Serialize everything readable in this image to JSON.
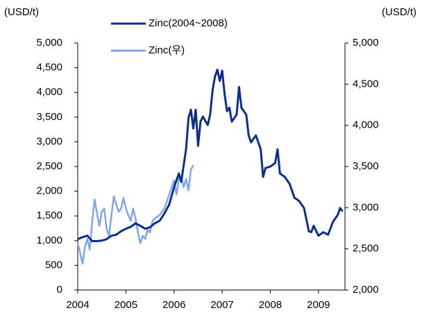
{
  "chart_data": {
    "type": "line",
    "y_label": "(USD/t)",
    "y2_label": "(USD/t)",
    "legend": "upper left",
    "xlim": [
      2004,
      2009.55
    ],
    "xticks": [
      2004,
      2005,
      2006,
      2007,
      2008,
      2009
    ],
    "ylim": [
      0,
      5000
    ],
    "yticks": [
      0,
      500,
      {
        "value": 1000,
        "label": "1,000"
      },
      {
        "value": 1500,
        "label": "1,500"
      },
      {
        "value": 2000,
        "label": "2,000"
      },
      {
        "value": 2500,
        "label": "2,500"
      },
      {
        "value": 3000,
        "label": "3,000"
      },
      {
        "value": 3500,
        "label": "3,500"
      },
      {
        "value": 4000,
        "label": "4,000"
      },
      {
        "value": 4500,
        "label": "4,500"
      },
      {
        "value": 5000,
        "label": "5,000"
      }
    ],
    "y2lim": [
      2000,
      5000
    ],
    "y2ticks": [
      {
        "value": 2000,
        "label": "2,000"
      },
      {
        "value": 2500,
        "label": "2,500"
      },
      {
        "value": 3000,
        "label": "3,000"
      },
      {
        "value": 3500,
        "label": "3,500"
      },
      {
        "value": 4000,
        "label": "4,000"
      },
      {
        "value": 4500,
        "label": "4,500"
      },
      {
        "value": 5000,
        "label": "5,000"
      }
    ],
    "series": [
      {
        "name": "Zinc(2004~2008)",
        "color": "#0b2d8e",
        "axis": "y",
        "x": [
          2004.0,
          2004.1,
          2004.2,
          2004.3,
          2004.4,
          2004.5,
          2004.6,
          2004.7,
          2004.8,
          2004.9,
          2005.0,
          2005.1,
          2005.2,
          2005.3,
          2005.4,
          2005.5,
          2005.6,
          2005.7,
          2005.8,
          2005.9,
          2006.0,
          2006.1,
          2006.15,
          2006.25,
          2006.3,
          2006.35,
          2006.4,
          2006.45,
          2006.5,
          2006.55,
          2006.6,
          2006.7,
          2006.75,
          2006.8,
          2006.85,
          2006.9,
          2006.95,
          2007.0,
          2007.05,
          2007.1,
          2007.15,
          2007.2,
          2007.3,
          2007.35,
          2007.4,
          2007.5,
          2007.55,
          2007.6,
          2007.7,
          2007.8,
          2007.85,
          2007.9,
          2008.0,
          2008.1,
          2008.15,
          2008.2,
          2008.3,
          2008.4,
          2008.5,
          2008.6,
          2008.7,
          2008.8,
          2008.85,
          2008.9,
          2009.0,
          2009.1,
          2009.2,
          2009.3,
          2009.4,
          2009.45,
          2009.5
        ],
        "values": [
          1030,
          1070,
          1100,
          990,
          990,
          1000,
          1030,
          1100,
          1120,
          1190,
          1240,
          1280,
          1350,
          1300,
          1240,
          1270,
          1350,
          1400,
          1550,
          1730,
          2080,
          2360,
          2190,
          2850,
          3480,
          3650,
          3270,
          3650,
          2920,
          3410,
          3510,
          3340,
          3550,
          4040,
          4320,
          4460,
          4230,
          4440,
          3970,
          3620,
          3690,
          3410,
          3550,
          4110,
          3690,
          3550,
          3130,
          2990,
          3130,
          2850,
          2290,
          2470,
          2500,
          2570,
          2850,
          2360,
          2290,
          2150,
          1870,
          1800,
          1660,
          1190,
          1170,
          1300,
          1100,
          1170,
          1120,
          1380,
          1520,
          1660,
          1590
        ]
      },
      {
        "name": "Zinc(우)",
        "color": "#7ea6ef",
        "axis": "y2",
        "x": [
          2004.0,
          2004.05,
          2004.1,
          2004.15,
          2004.2,
          2004.25,
          2004.3,
          2004.35,
          2004.4,
          2004.45,
          2004.5,
          2004.55,
          2004.6,
          2004.65,
          2004.7,
          2004.75,
          2004.8,
          2004.85,
          2004.9,
          2004.95,
          2005.0,
          2005.05,
          2005.1,
          2005.15,
          2005.2,
          2005.25,
          2005.3,
          2005.35,
          2005.4,
          2005.45,
          2005.5,
          2005.55,
          2005.6,
          2005.7,
          2005.8,
          2005.9,
          2006.0,
          2006.05,
          2006.1,
          2006.15,
          2006.2,
          2006.25,
          2006.3,
          2006.35,
          2006.4
        ],
        "values": [
          2570,
          2450,
          2320,
          2530,
          2620,
          2490,
          2830,
          3100,
          2930,
          2780,
          2950,
          2990,
          2740,
          2660,
          2910,
          3140,
          3040,
          2950,
          2990,
          3120,
          2990,
          2910,
          2840,
          2990,
          2870,
          2700,
          2570,
          2660,
          2620,
          2730,
          2700,
          2830,
          2870,
          2910,
          2990,
          3160,
          3330,
          3160,
          3350,
          3370,
          3250,
          3350,
          3210,
          3460,
          3520
        ]
      }
    ]
  }
}
